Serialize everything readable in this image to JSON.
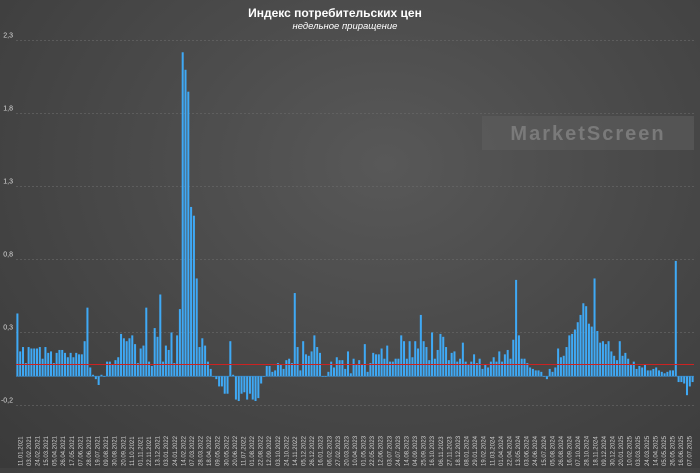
{
  "chart_data": {
    "type": "bar",
    "title": "Индекс потребительских цен",
    "subtitle": "недельное приращение",
    "watermark": "MarketScreen",
    "ylim": [
      -0.3,
      2.4
    ],
    "yticks": [
      2.3,
      1.8,
      1.3,
      0.8,
      0.3,
      -0.2
    ],
    "ytick_labels": [
      "2,3",
      "1,8",
      "1,3",
      "0,8",
      "0,3",
      "-0,2"
    ],
    "reference_line": {
      "value": 0.08,
      "color": "#cc2222"
    },
    "bar_color": "#3fa9f5",
    "xtick_labels": [
      "11.01.2021",
      "03.02.2021",
      "24.02.2021",
      "15.03.2021",
      "05.04.2021",
      "26.04.2021",
      "17.05.2021",
      "07.06.2021",
      "28.06.2021",
      "19.07.2021",
      "09.08.2021",
      "30.08.2021",
      "20.09.2021",
      "11.10.2021",
      "01.11.2021",
      "22.11.2021",
      "13.12.2021",
      "03.01.2022",
      "24.01.2022",
      "14.02.2022",
      "07.03.2022",
      "28.03.2022",
      "18.04.2022",
      "09.05.2022",
      "30.05.2022",
      "20.06.2022",
      "11.07.2022",
      "01.08.2022",
      "22.08.2022",
      "12.09.2022",
      "03.10.2022",
      "24.10.2022",
      "14.11.2022",
      "05.12.2022",
      "26.12.2022",
      "16.01.2023",
      "06.02.2023",
      "27.02.2023",
      "20.03.2023",
      "10.04.2023",
      "01.05.2023",
      "22.05.2023",
      "12.06.2023",
      "03.07.2023",
      "24.07.2023",
      "14.08.2023",
      "04.09.2023",
      "25.09.2023",
      "16.10.2023",
      "06.11.2023",
      "27.11.2023",
      "18.12.2023",
      "08.01.2024",
      "29.01.2024",
      "19.02.2024",
      "11.03.2024",
      "01.04.2024",
      "22.04.2024",
      "13.05.2024",
      "03.06.2024",
      "24.06.2024",
      "15.07.2024",
      "05.08.2024",
      "26.08.2024",
      "16.09.2024",
      "07.10.2024",
      "28.10.2024",
      "18.11.2024",
      "09.12.2024",
      "30.12.2024",
      "20.01.2025",
      "10.02.2025",
      "03.03.2025",
      "24.03.2025",
      "14.04.2025",
      "05.05.2025",
      "26.05.2025",
      "16.06.2025",
      "07.07.2025"
    ],
    "values": [
      0.43,
      0.17,
      0.2,
      0.09,
      0.2,
      0.19,
      0.19,
      0.19,
      0.2,
      0.12,
      0.2,
      0.16,
      0.17,
      0.09,
      0.16,
      0.18,
      0.18,
      0.16,
      0.13,
      0.16,
      0.13,
      0.16,
      0.15,
      0.15,
      0.24,
      0.47,
      0.06,
      0.01,
      -0.02,
      -0.06,
      0.01,
      0.0,
      0.1,
      0.1,
      0.08,
      0.11,
      0.13,
      0.29,
      0.26,
      0.24,
      0.26,
      0.28,
      0.22,
      0.09,
      0.19,
      0.21,
      0.47,
      0.1,
      0.07,
      0.33,
      0.27,
      0.56,
      0.1,
      0.21,
      0.18,
      0.3,
      0.09,
      0.28,
      0.46,
      2.22,
      2.1,
      1.95,
      1.16,
      1.1,
      0.67,
      0.2,
      0.26,
      0.21,
      0.1,
      0.05,
      0.0,
      -0.02,
      -0.07,
      -0.07,
      -0.12,
      -0.12,
      0.24,
      0.01,
      -0.16,
      -0.17,
      -0.12,
      -0.11,
      -0.16,
      -0.12,
      -0.16,
      -0.17,
      -0.15,
      -0.05,
      0.0,
      0.07,
      0.07,
      0.03,
      0.04,
      0.09,
      0.08,
      0.05,
      0.11,
      0.12,
      0.09,
      0.57,
      0.2,
      0.04,
      0.24,
      0.15,
      0.14,
      0.17,
      0.28,
      0.2,
      0.16,
      0.0,
      0.0,
      0.03,
      0.1,
      0.06,
      0.13,
      0.11,
      0.11,
      0.05,
      0.17,
      0.02,
      0.12,
      0.08,
      0.11,
      0.08,
      0.22,
      0.03,
      0.09,
      0.16,
      0.15,
      0.15,
      0.19,
      0.12,
      0.21,
      0.1,
      0.1,
      0.12,
      0.12,
      0.28,
      0.24,
      0.12,
      0.24,
      0.13,
      0.24,
      0.19,
      0.42,
      0.24,
      0.2,
      0.11,
      0.3,
      0.12,
      0.18,
      0.29,
      0.27,
      0.2,
      0.11,
      0.16,
      0.17,
      0.1,
      0.12,
      0.23,
      0.1,
      0.08,
      0.1,
      0.15,
      0.09,
      0.12,
      0.05,
      0.08,
      0.06,
      0.1,
      0.13,
      0.1,
      0.17,
      0.1,
      0.15,
      0.18,
      0.12,
      0.25,
      0.66,
      0.28,
      0.12,
      0.12,
      0.09,
      0.06,
      0.05,
      0.04,
      0.04,
      0.03,
      0.0,
      -0.02,
      0.05,
      0.03,
      0.06,
      0.19,
      0.13,
      0.14,
      0.2,
      0.28,
      0.29,
      0.32,
      0.37,
      0.42,
      0.5,
      0.48,
      0.36,
      0.34,
      0.67,
      0.31,
      0.23,
      0.24,
      0.22,
      0.24,
      0.17,
      0.14,
      0.11,
      0.24,
      0.14,
      0.16,
      0.12,
      0.08,
      0.1,
      0.05,
      0.07,
      0.06,
      0.08,
      0.04,
      0.04,
      0.05,
      0.06,
      0.04,
      0.03,
      0.02,
      0.03,
      0.04,
      0.04,
      0.79,
      -0.04,
      -0.04,
      -0.05,
      -0.13,
      -0.07,
      -0.04
    ]
  }
}
